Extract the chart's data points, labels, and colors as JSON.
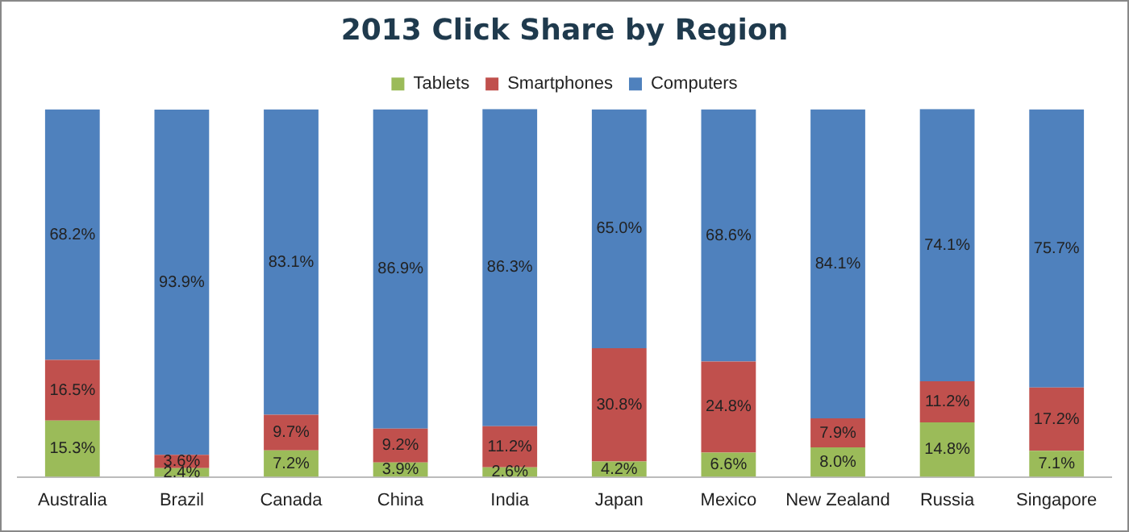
{
  "chart_data": {
    "type": "bar",
    "title": "2013 Click Share by Region",
    "stacked": true,
    "legend": "top",
    "grid": false,
    "tick_labels": "x",
    "ylim": [
      0,
      100.1
    ],
    "categories": [
      "Australia",
      "Brazil",
      "Canada",
      "China",
      "India",
      "Japan",
      "Mexico",
      "New Zealand",
      "Russia",
      "Singapore"
    ],
    "series": [
      {
        "name": "Tablets",
        "color": "#9bbb59",
        "values": [
          15.3,
          2.4,
          7.2,
          3.9,
          2.6,
          4.2,
          6.6,
          8.0,
          14.8,
          7.1
        ],
        "value_labels": [
          "15.3%",
          "2.4%",
          "7.2%",
          "3.9%",
          "2.6%",
          "4.2%",
          "6.6%",
          "8.0%",
          "14.8%",
          "7.1%"
        ]
      },
      {
        "name": "Smartphones",
        "color": "#c0504d",
        "values": [
          16.5,
          3.6,
          9.7,
          9.2,
          11.2,
          30.8,
          24.8,
          7.9,
          11.2,
          17.2
        ],
        "value_labels": [
          "16.5%",
          "3.6%",
          "9.7%",
          "9.2%",
          "11.2%",
          "30.8%",
          "24.8%",
          "7.9%",
          "11.2%",
          "17.2%"
        ]
      },
      {
        "name": "Computers",
        "color": "#4f81bd",
        "values": [
          68.2,
          93.9,
          83.1,
          86.9,
          86.3,
          65.0,
          68.6,
          84.1,
          74.1,
          75.7
        ],
        "value_labels": [
          "68.2%",
          "93.9%",
          "83.1%",
          "86.9%",
          "86.3%",
          "65.0%",
          "68.6%",
          "84.1%",
          "74.1%",
          "75.7%"
        ]
      }
    ]
  }
}
